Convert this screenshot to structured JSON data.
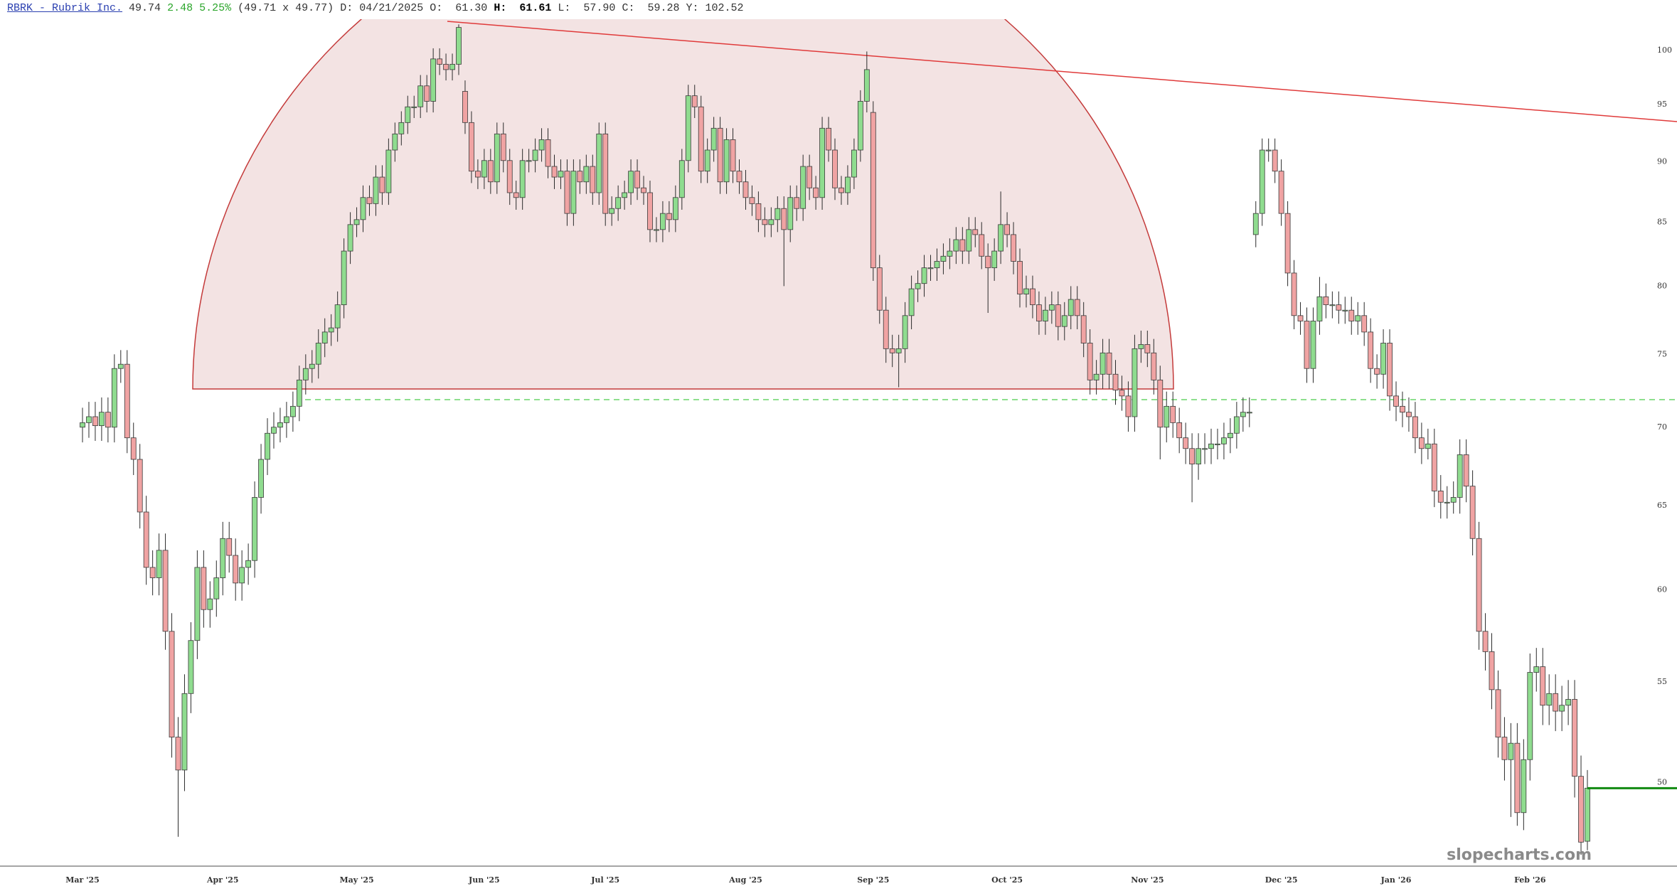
{
  "header": {
    "symbol": "RBRK - Rubrik Inc.",
    "last": "49.74",
    "change": "2.48",
    "change_pct": "5.25%",
    "bid_ask": "(49.71 x 49.77)",
    "date_label": "D:",
    "date": "04/21/2025",
    "open_label": "O:",
    "open": "61.30",
    "high_label": "H:",
    "high": "61.61",
    "low_label": "L:",
    "low": "57.90",
    "close_label": "C:",
    "close": "59.28",
    "year_high_label": "Y:",
    "year_high": "102.52"
  },
  "watermark": "slopecharts.com",
  "chart_data": {
    "type": "candlestick",
    "log_scale": true,
    "yaxis_position": "right",
    "up_color": "#8fdc8f",
    "down_color": "#f0a3a3",
    "last_price_color": "#118a11",
    "ylim": [
      46.2,
      103
    ],
    "yticks": [
      50,
      55,
      60,
      65,
      70,
      75,
      80,
      85,
      90,
      95,
      100
    ],
    "categories": [
      "Mar '25",
      null,
      null,
      null,
      null,
      null,
      null,
      null,
      null,
      null,
      null,
      null,
      null,
      null,
      null,
      null,
      null,
      null,
      null,
      null,
      null,
      null,
      "Apr '25",
      null,
      null,
      null,
      null,
      null,
      null,
      null,
      null,
      null,
      null,
      null,
      null,
      null,
      null,
      null,
      null,
      null,
      null,
      null,
      null,
      "May '25",
      null,
      null,
      null,
      null,
      null,
      null,
      null,
      null,
      null,
      null,
      null,
      null,
      null,
      null,
      null,
      null,
      null,
      null,
      null,
      "Jun '25",
      null,
      null,
      null,
      null,
      null,
      null,
      null,
      null,
      null,
      null,
      null,
      null,
      null,
      null,
      null,
      null,
      null,
      null,
      "Jul '25",
      null,
      null,
      null,
      null,
      null,
      null,
      null,
      null,
      null,
      null,
      null,
      null,
      null,
      null,
      null,
      null,
      null,
      null,
      null,
      null,
      null,
      "Aug '25",
      null,
      null,
      null,
      null,
      null,
      null,
      null,
      null,
      null,
      null,
      null,
      null,
      null,
      null,
      null,
      null,
      null,
      null,
      null,
      "Sep '25",
      null,
      null,
      null,
      null,
      null,
      null,
      null,
      null,
      null,
      null,
      null,
      null,
      null,
      null,
      null,
      null,
      null,
      null,
      null,
      null,
      "Oct '25",
      null,
      null,
      null,
      null,
      null,
      null,
      null,
      null,
      null,
      null,
      null,
      null,
      null,
      null,
      null,
      null,
      null,
      null,
      null,
      null,
      null,
      "Nov '25",
      null,
      null,
      null,
      null,
      null,
      null,
      null,
      null,
      null,
      null,
      null,
      null,
      null,
      null,
      null,
      null,
      null,
      null,
      null,
      null,
      "Dec '25",
      null,
      null,
      null,
      null,
      null,
      null,
      null,
      null,
      null,
      null,
      null,
      null,
      null,
      null,
      null,
      null,
      null,
      "Jan '26",
      null,
      null,
      null,
      null,
      null,
      null,
      null,
      null,
      null,
      null,
      null,
      null,
      null,
      null,
      null,
      null,
      null,
      null,
      null,
      null,
      "Feb '26",
      null,
      null,
      null,
      null,
      null,
      null,
      null,
      null,
      null
    ],
    "open": [
      70.0,
      70.3,
      70.7,
      70.1,
      71.0,
      70.0,
      74.0,
      74.3,
      69.3,
      67.9,
      64.6,
      61.3,
      60.7,
      62.3,
      57.7,
      52.2,
      50.6,
      54.4,
      57.2,
      61.3,
      58.9,
      59.5,
      60.7,
      63.0,
      62.0,
      60.4,
      61.3,
      61.7,
      65.5,
      67.9,
      69.6,
      70.0,
      70.3,
      70.7,
      71.4,
      73.2,
      74.0,
      74.3,
      75.8,
      76.6,
      76.9,
      78.6,
      82.7,
      84.8,
      85.2,
      87.0,
      86.5,
      88.7,
      87.4,
      91.0,
      92.4,
      93.4,
      94.8,
      94.8,
      96.7,
      95.3,
      99.2,
      98.7,
      98.2,
      98.7,
      96.2,
      93.4,
      89.2,
      88.7,
      90.1,
      88.3,
      92.4,
      90.1,
      87.4,
      87.0,
      90.1,
      90.1,
      91.0,
      91.9,
      89.6,
      88.7,
      89.2,
      85.7,
      89.2,
      88.3,
      89.6,
      87.4,
      92.4,
      85.7,
      86.1,
      87.0,
      87.4,
      89.2,
      87.8,
      87.4,
      84.4,
      84.4,
      85.7,
      85.2,
      87.0,
      90.1,
      95.8,
      94.8,
      89.2,
      91.0,
      92.9,
      88.3,
      91.9,
      89.2,
      88.3,
      87.0,
      86.5,
      85.2,
      84.8,
      85.2,
      86.1,
      84.4,
      87.0,
      86.1,
      89.6,
      87.8,
      87.0,
      92.9,
      91.0,
      87.8,
      87.4,
      88.7,
      91.0,
      95.3,
      94.3,
      81.4,
      78.2,
      75.4,
      75.1,
      75.4,
      77.8,
      79.8,
      80.2,
      81.4,
      81.4,
      81.9,
      82.3,
      82.7,
      83.6,
      82.7,
      84.4,
      84.0,
      82.3,
      81.4,
      82.7,
      84.8,
      84.0,
      81.9,
      79.4,
      79.8,
      78.6,
      77.4,
      78.2,
      78.6,
      77.0,
      77.8,
      79.0,
      77.8,
      75.8,
      73.2,
      73.6,
      75.1,
      73.6,
      72.5,
      72.1,
      70.7,
      75.4,
      75.7,
      75.1,
      73.2,
      70.0,
      71.4,
      70.3,
      69.3,
      68.6,
      67.6,
      68.6,
      68.6,
      68.9,
      68.9,
      69.3,
      69.6,
      70.7,
      71.0,
      84.0,
      85.7,
      91.0,
      91.0,
      89.2,
      85.7,
      81.0,
      77.8,
      77.4,
      74.0,
      77.4,
      79.2,
      78.6,
      78.6,
      78.2,
      78.2,
      77.4,
      77.8,
      76.6,
      74.0,
      73.6,
      75.8,
      72.1,
      71.4,
      71.0,
      70.7,
      69.3,
      68.6,
      68.9,
      65.9,
      65.2,
      65.2,
      65.5,
      68.2,
      66.2,
      63.0,
      57.7,
      56.6,
      54.6,
      52.2,
      51.1,
      51.9,
      48.6,
      51.1,
      55.5,
      55.8,
      53.8,
      54.4,
      53.5,
      53.8,
      54.1,
      50.3,
      47.3
    ],
    "high": [
      71.3,
      71.7,
      71.7,
      72.0,
      72.0,
      75.0,
      75.3,
      75.3,
      70.3,
      68.9,
      65.6,
      62.3,
      63.3,
      63.3,
      58.7,
      53.2,
      55.4,
      58.2,
      62.3,
      62.3,
      60.5,
      61.7,
      64.0,
      64.0,
      63.0,
      62.3,
      62.7,
      66.5,
      68.9,
      70.6,
      71.0,
      71.3,
      71.7,
      72.4,
      74.2,
      75.0,
      75.3,
      76.8,
      77.6,
      77.9,
      79.6,
      83.7,
      85.8,
      86.2,
      88.0,
      88.0,
      89.7,
      89.7,
      92.0,
      93.4,
      94.4,
      95.8,
      95.8,
      97.7,
      97.7,
      100.2,
      100.2,
      99.7,
      99.7,
      102.5,
      97.2,
      94.4,
      90.2,
      91.1,
      91.1,
      93.4,
      93.4,
      91.1,
      88.4,
      91.1,
      91.1,
      92.0,
      92.9,
      92.9,
      90.6,
      90.2,
      90.2,
      90.2,
      90.2,
      90.6,
      90.6,
      93.4,
      93.4,
      87.1,
      88.0,
      88.4,
      90.2,
      90.2,
      88.8,
      88.4,
      85.4,
      86.7,
      86.7,
      88.0,
      91.1,
      96.8,
      96.8,
      95.8,
      92.0,
      93.9,
      93.9,
      92.9,
      92.9,
      90.2,
      89.3,
      88.0,
      87.5,
      86.2,
      86.2,
      87.1,
      87.1,
      88.0,
      88.0,
      90.6,
      90.6,
      88.8,
      93.9,
      93.9,
      92.0,
      88.8,
      89.7,
      92.0,
      96.3,
      99.9,
      95.3,
      82.4,
      79.2,
      76.4,
      76.4,
      78.8,
      80.8,
      81.2,
      82.4,
      82.4,
      82.9,
      83.3,
      83.7,
      84.6,
      84.6,
      85.4,
      85.4,
      85.0,
      83.3,
      83.7,
      87.5,
      85.8,
      85.0,
      82.9,
      80.8,
      80.8,
      79.6,
      79.2,
      79.6,
      79.6,
      78.8,
      80.0,
      80.0,
      78.8,
      76.8,
      74.6,
      76.1,
      76.1,
      74.6,
      73.5,
      73.1,
      76.4,
      76.7,
      76.7,
      76.1,
      74.2,
      72.4,
      72.4,
      71.3,
      70.3,
      69.6,
      69.6,
      69.6,
      69.9,
      69.9,
      70.3,
      70.6,
      71.7,
      72.0,
      72.0,
      86.7,
      92.0,
      92.0,
      92.0,
      90.2,
      86.7,
      82.0,
      78.8,
      78.4,
      78.4,
      80.7,
      80.2,
      79.6,
      79.6,
      79.2,
      79.2,
      78.8,
      78.8,
      77.6,
      75.0,
      76.8,
      76.8,
      73.1,
      72.4,
      72.0,
      71.7,
      70.3,
      69.9,
      69.9,
      66.9,
      66.2,
      66.5,
      69.2,
      69.2,
      67.2,
      64.0,
      58.7,
      57.6,
      55.6,
      53.2,
      52.9,
      52.9,
      52.1,
      56.5,
      56.8,
      56.8,
      55.4,
      55.4,
      54.8,
      55.1,
      55.1,
      51.3,
      50.6
    ],
    "low": [
      69.0,
      69.3,
      69.1,
      69.1,
      69.0,
      69.0,
      73.0,
      68.3,
      66.9,
      63.6,
      60.3,
      59.7,
      59.7,
      56.7,
      51.2,
      47.5,
      49.6,
      53.4,
      56.2,
      57.9,
      57.9,
      58.5,
      59.7,
      61.0,
      59.4,
      59.4,
      60.3,
      60.7,
      64.5,
      66.9,
      68.6,
      69.0,
      69.3,
      69.7,
      70.4,
      72.2,
      73.0,
      73.3,
      74.8,
      75.6,
      75.9,
      77.6,
      81.7,
      83.8,
      84.2,
      85.5,
      85.5,
      86.4,
      86.4,
      90.0,
      91.4,
      92.4,
      93.8,
      93.8,
      94.3,
      94.3,
      97.7,
      97.2,
      97.2,
      97.7,
      92.4,
      88.2,
      87.7,
      87.7,
      87.3,
      87.3,
      89.1,
      86.4,
      86.0,
      86.0,
      89.1,
      89.1,
      90.0,
      88.6,
      87.7,
      87.7,
      84.7,
      84.7,
      87.3,
      87.3,
      86.4,
      86.4,
      84.7,
      84.7,
      85.1,
      86.0,
      86.4,
      86.8,
      86.4,
      83.4,
      83.4,
      83.4,
      84.2,
      84.2,
      86.0,
      89.1,
      93.8,
      88.2,
      88.2,
      90.0,
      87.3,
      87.3,
      88.2,
      87.3,
      86.0,
      85.5,
      84.2,
      83.8,
      83.8,
      84.2,
      80.0,
      83.4,
      85.1,
      85.1,
      86.8,
      86.0,
      86.0,
      90.0,
      86.8,
      86.4,
      86.4,
      87.7,
      90.0,
      94.3,
      80.4,
      77.2,
      74.4,
      74.1,
      72.7,
      74.4,
      76.8,
      78.8,
      79.2,
      80.4,
      80.4,
      80.9,
      81.3,
      81.7,
      81.7,
      81.7,
      83.0,
      81.3,
      78.0,
      80.4,
      81.7,
      83.0,
      80.9,
      78.4,
      78.4,
      77.6,
      76.4,
      76.4,
      77.2,
      76.0,
      76.0,
      76.8,
      76.8,
      74.8,
      72.2,
      72.2,
      72.6,
      72.6,
      71.5,
      71.1,
      69.7,
      69.7,
      74.4,
      74.1,
      72.2,
      67.9,
      69.0,
      69.3,
      68.3,
      67.6,
      65.2,
      66.6,
      67.6,
      67.6,
      67.9,
      67.9,
      68.3,
      68.6,
      69.7,
      70.0,
      83.0,
      84.7,
      90.0,
      88.2,
      84.7,
      80.0,
      76.8,
      76.4,
      73.0,
      73.0,
      76.4,
      77.6,
      77.6,
      77.2,
      77.2,
      76.4,
      76.4,
      75.6,
      73.0,
      72.6,
      72.6,
      71.1,
      70.4,
      70.0,
      69.7,
      68.3,
      67.6,
      67.9,
      64.9,
      64.2,
      64.2,
      64.5,
      64.5,
      65.2,
      62.0,
      56.7,
      55.6,
      53.6,
      51.2,
      50.1,
      48.4,
      48.0,
      47.8,
      50.1,
      54.5,
      52.8,
      52.8,
      52.5,
      52.5,
      52.8,
      49.3,
      46.7,
      46.9
    ],
    "close": [
      70.3,
      70.7,
      70.1,
      71.0,
      70.0,
      74.0,
      74.3,
      69.3,
      67.9,
      64.6,
      61.3,
      60.7,
      62.3,
      57.7,
      52.2,
      50.6,
      54.4,
      57.2,
      61.3,
      58.9,
      59.5,
      60.7,
      63.0,
      62.0,
      60.4,
      61.3,
      61.7,
      65.5,
      67.9,
      69.6,
      70.0,
      70.3,
      70.7,
      71.4,
      73.2,
      74.0,
      74.3,
      75.8,
      76.6,
      76.9,
      78.6,
      82.7,
      84.8,
      85.2,
      87.0,
      86.5,
      88.7,
      87.4,
      91.0,
      92.4,
      93.4,
      94.8,
      94.8,
      96.7,
      95.3,
      99.2,
      98.7,
      98.2,
      98.7,
      102.2,
      93.4,
      89.2,
      88.7,
      90.1,
      88.3,
      92.4,
      90.1,
      87.4,
      87.0,
      90.1,
      90.1,
      91.0,
      91.9,
      89.6,
      88.7,
      89.2,
      85.7,
      89.2,
      88.3,
      89.6,
      87.4,
      92.4,
      85.7,
      86.1,
      87.0,
      87.4,
      89.2,
      87.8,
      87.4,
      84.4,
      84.4,
      85.7,
      85.2,
      87.0,
      90.1,
      95.8,
      94.8,
      89.2,
      91.0,
      92.9,
      88.3,
      91.9,
      89.2,
      88.3,
      87.0,
      86.5,
      85.2,
      84.8,
      85.2,
      86.1,
      84.4,
      87.0,
      86.1,
      89.6,
      87.8,
      87.0,
      92.9,
      91.0,
      87.8,
      87.4,
      88.7,
      91.0,
      95.3,
      98.2,
      81.4,
      78.2,
      75.4,
      75.1,
      75.4,
      77.8,
      79.8,
      80.2,
      81.4,
      81.4,
      81.9,
      82.3,
      82.7,
      83.6,
      82.7,
      84.4,
      84.0,
      82.3,
      81.4,
      82.7,
      84.8,
      84.0,
      81.9,
      79.4,
      79.8,
      78.6,
      77.4,
      78.2,
      78.6,
      77.0,
      77.8,
      79.0,
      77.8,
      75.8,
      73.2,
      73.6,
      75.1,
      73.6,
      72.5,
      72.1,
      70.7,
      75.4,
      75.7,
      75.1,
      73.2,
      70.0,
      71.4,
      70.3,
      69.3,
      68.6,
      67.6,
      68.6,
      68.6,
      68.9,
      68.9,
      69.3,
      69.6,
      70.7,
      71.0,
      71.0,
      85.7,
      91.0,
      91.0,
      89.2,
      85.7,
      81.0,
      77.8,
      77.4,
      74.0,
      77.4,
      79.2,
      78.6,
      78.6,
      78.2,
      78.2,
      77.4,
      77.8,
      76.6,
      74.0,
      73.6,
      75.8,
      72.1,
      71.4,
      71.0,
      70.7,
      69.3,
      68.6,
      68.9,
      65.9,
      65.2,
      65.2,
      65.5,
      68.2,
      66.2,
      63.0,
      57.7,
      56.6,
      54.6,
      52.2,
      51.1,
      51.9,
      48.6,
      51.1,
      55.5,
      55.8,
      53.8,
      54.4,
      53.5,
      53.8,
      54.1,
      50.3,
      47.26,
      49.74
    ]
  }
}
